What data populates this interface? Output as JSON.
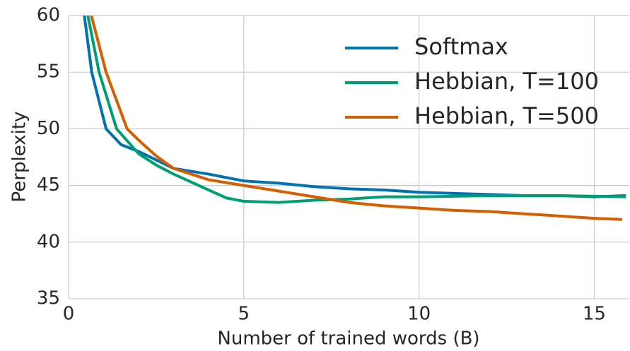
{
  "chart_data": {
    "type": "line",
    "xlabel": "Number of trained words (B)",
    "ylabel": "Perplexity",
    "xlim": [
      0,
      16
    ],
    "ylim": [
      35,
      60
    ],
    "xticks": [
      0,
      5,
      10,
      15
    ],
    "yticks": [
      35,
      40,
      45,
      50,
      55,
      60
    ],
    "grid": true,
    "legend": "upper right",
    "series": [
      {
        "name": "Softmax",
        "color": "#0072b2",
        "x": [
          0.45,
          0.66,
          1.07,
          1.5,
          2,
          3,
          4,
          5,
          6,
          7,
          8,
          9,
          10,
          11,
          12,
          13,
          14,
          15,
          15.9
        ],
        "values": [
          60,
          55,
          50,
          48.6,
          48,
          46.5,
          46,
          45.4,
          45.2,
          44.9,
          44.7,
          44.6,
          44.4,
          44.3,
          44.2,
          44.1,
          44.1,
          44.0,
          44.1
        ]
      },
      {
        "name": "Hebbian, T=100",
        "color": "#009e73",
        "x": [
          0.55,
          0.87,
          1.37,
          2,
          2.5,
          3,
          3.5,
          4,
          4.5,
          5,
          6,
          7,
          8,
          9,
          10,
          12,
          14,
          15.9
        ],
        "values": [
          60,
          55,
          50,
          47.8,
          46.8,
          46,
          45.3,
          44.6,
          43.9,
          43.6,
          43.5,
          43.7,
          43.8,
          44,
          44,
          44.1,
          44.1,
          44.0
        ]
      },
      {
        "name": "Hebbian, T=500",
        "color": "#d55e00",
        "x": [
          0.65,
          1.07,
          1.67,
          2,
          2.5,
          3,
          4,
          5,
          6,
          7,
          8,
          9,
          10,
          11,
          12,
          13,
          14,
          15,
          15.8
        ],
        "values": [
          60,
          55,
          50,
          49,
          47.6,
          46.5,
          45.5,
          45,
          44.5,
          44,
          43.5,
          43.2,
          43,
          42.8,
          42.7,
          42.5,
          42.3,
          42.1,
          42
        ]
      }
    ]
  }
}
